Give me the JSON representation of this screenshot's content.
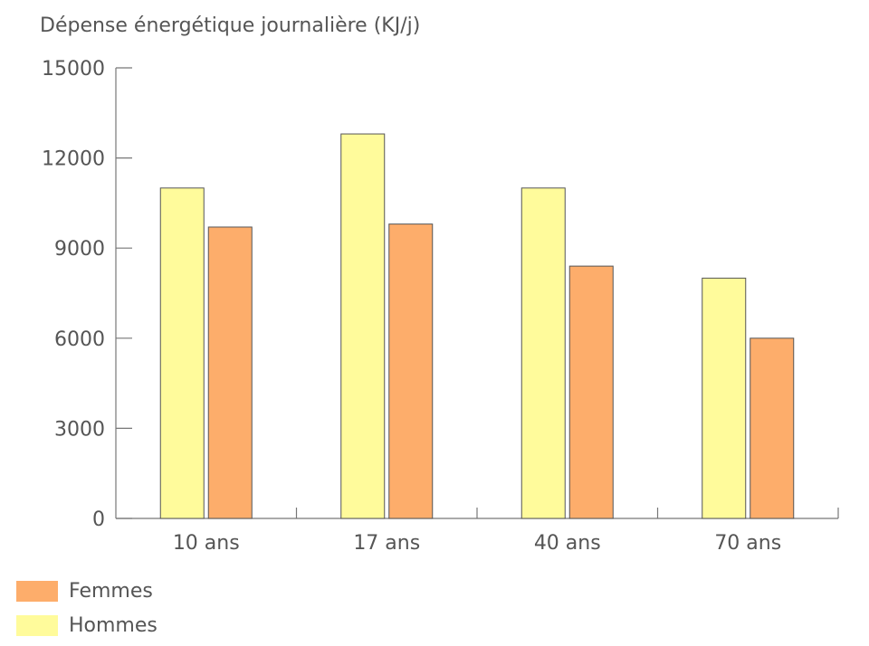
{
  "chart_data": {
    "type": "bar",
    "ylabel": "Dépense énergétique journalière (KJ/j)",
    "categories": [
      "10 ans",
      "17 ans",
      "40 ans",
      "70 ans"
    ],
    "series": [
      {
        "name": "Hommes",
        "color": "#fffb9b",
        "values": [
          11000,
          12800,
          11000,
          8000
        ]
      },
      {
        "name": "Femmes",
        "color": "#fdad6b",
        "values": [
          9700,
          9800,
          8400,
          6000
        ]
      }
    ],
    "ylim": [
      0,
      15000
    ],
    "yticks": [
      0,
      3000,
      6000,
      9000,
      12000,
      15000
    ],
    "grid": false,
    "legend_position": "bottom-left"
  },
  "legend": [
    {
      "label": "Femmes",
      "color": "#fdad6b"
    },
    {
      "label": "Hommes",
      "color": "#fffb9b"
    }
  ]
}
